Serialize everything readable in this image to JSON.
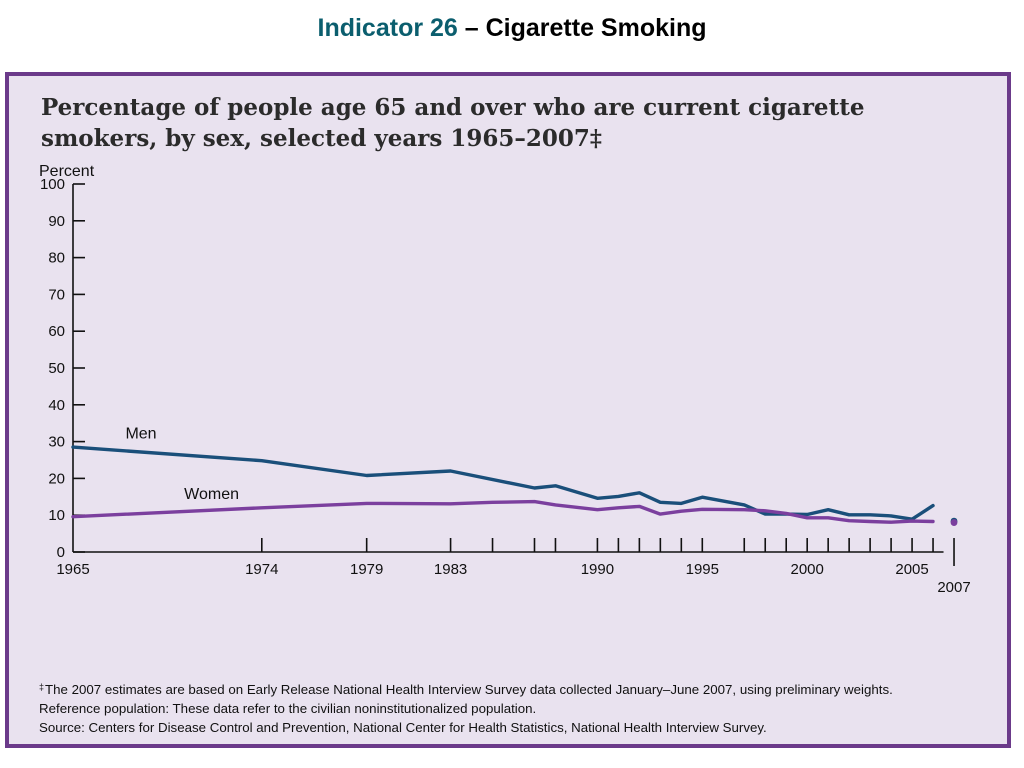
{
  "slide": {
    "title_accent": "Indicator 26",
    "title_rest": " – Cigarette Smoking",
    "accent_color": "#0b5e6e"
  },
  "panel": {
    "background": "#e9e2ef",
    "border_color": "#6b3a8a"
  },
  "chart_data": {
    "type": "line",
    "title": "Percentage of people age 65 and over who are current cigarette smokers, by sex, selected years 1965–2007‡",
    "ylabel": "Percent",
    "xlabel": "",
    "ylim": [
      0,
      100
    ],
    "xlim": [
      1965,
      2008
    ],
    "yticks": [
      0,
      10,
      20,
      30,
      40,
      50,
      60,
      70,
      80,
      90,
      100
    ],
    "xtick_labels": [
      1965,
      1974,
      1979,
      1983,
      1990,
      1995,
      2000,
      2005
    ],
    "xtick_marks": [
      1965,
      1974,
      1979,
      1983,
      1985,
      1987,
      1988,
      1990,
      1991,
      1992,
      1993,
      1994,
      1995,
      1997,
      1998,
      1999,
      2000,
      2001,
      2002,
      2003,
      2004,
      2005,
      2006,
      2007
    ],
    "separate_label": "2007",
    "grid": false,
    "legend": "inline labels",
    "series": [
      {
        "name": "Men",
        "color": "#1a4f7a",
        "x": [
          1965,
          1974,
          1979,
          1983,
          1987,
          1988,
          1990,
          1991,
          1992,
          1993,
          1994,
          1995,
          1997,
          1998,
          1999,
          2000,
          2001,
          2002,
          2003,
          2004,
          2005,
          2006
        ],
        "y": [
          28.5,
          24.8,
          20.8,
          22.0,
          17.4,
          18.0,
          14.6,
          15.1,
          16.1,
          13.5,
          13.2,
          14.9,
          12.8,
          10.3,
          10.3,
          10.2,
          11.5,
          10.1,
          10.1,
          9.8,
          8.9,
          12.6
        ]
      },
      {
        "name": "Women",
        "color": "#7b3f9e",
        "x": [
          1965,
          1974,
          1979,
          1983,
          1985,
          1987,
          1988,
          1990,
          1991,
          1992,
          1993,
          1994,
          1995,
          1997,
          1998,
          1999,
          2000,
          2001,
          2002,
          2003,
          2004,
          2005,
          2006
        ],
        "y": [
          9.6,
          12.0,
          13.2,
          13.1,
          13.5,
          13.7,
          12.8,
          11.5,
          12.0,
          12.4,
          10.3,
          11.1,
          11.6,
          11.5,
          11.2,
          10.5,
          9.3,
          9.3,
          8.5,
          8.3,
          8.1,
          8.4,
          8.3
        ]
      }
    ],
    "points_2007": [
      {
        "name": "Men",
        "x": 2007,
        "y": 8.4,
        "color": "#1a4f7a"
      },
      {
        "name": "Women",
        "x": 2007,
        "y": 8.0,
        "color": "#7b3f9e"
      }
    ]
  },
  "footnotes": {
    "dagger": "‡",
    "line1": "The 2007 estimates are based on Early Release National Health Interview Survey data collected January–June 2007, using preliminary weights.",
    "line2": "Reference population: These data refer to the civilian noninstitutionalized population.",
    "line3": "Source:  Centers for Disease Control and Prevention, National Center for Health Statistics, National Health Interview Survey."
  }
}
